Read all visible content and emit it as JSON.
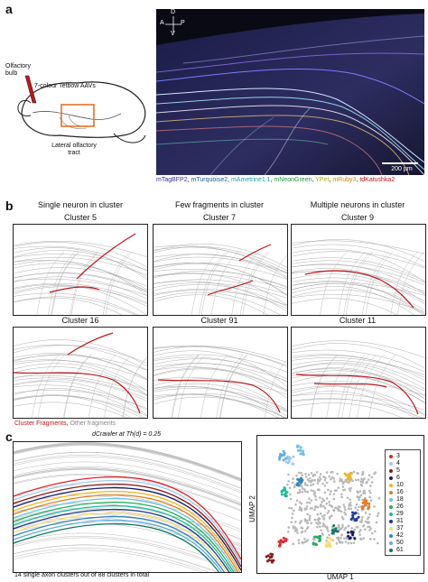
{
  "panel_a": {
    "letter": "a",
    "left_labels": {
      "olfactory_bulb": "Olfactory bulb",
      "aavs": "7-colour Tetbow AAVs",
      "tract": "Lateral olfactory tract"
    },
    "compass": {
      "d": "D",
      "a": "A",
      "p": "P",
      "v": "V"
    },
    "scale_bar": "200 µm",
    "fluor_labels": [
      {
        "text": "mTagBFP2",
        "color": "#3a2fa8"
      },
      {
        "text": "mTurquoise2",
        "color": "#1f5aa6"
      },
      {
        "text": "mAmetrine1.1",
        "color": "#1b9fb0"
      },
      {
        "text": "mNeonGreen",
        "color": "#1b9b3b"
      },
      {
        "text": "YPet",
        "color": "#b7a900"
      },
      {
        "text": "mRuby3",
        "color": "#d18a00"
      },
      {
        "text": "tdKatushka2",
        "color": "#c0151b"
      }
    ]
  },
  "panel_b": {
    "letter": "b",
    "headers": [
      "Single neuron in cluster",
      "Few fragments in cluster",
      "Multiple neurons in cluster"
    ],
    "clusters_row1": [
      "Cluster 5",
      "Cluster 7",
      "Cluster 9"
    ],
    "clusters_row2": [
      "Cluster 16",
      "Cluster 91",
      "Cluster 11"
    ],
    "legend_red": "Cluster Fragments",
    "legend_sep": ", ",
    "legend_grey": "Other fragments"
  },
  "panel_c": {
    "letter": "c",
    "title": "dCrawler at Th(d) = 0.25",
    "caption": "14 single axon clusters out of 88 clusters in total",
    "umap_x": "UMAP 1",
    "umap_y": "UMAP 2",
    "legend": [
      {
        "label": "3",
        "color": "#e8222a"
      },
      {
        "label": "4",
        "color": "#9ecbe8"
      },
      {
        "label": "5",
        "color": "#8b1a1a"
      },
      {
        "label": "6",
        "color": "#1a1a6e"
      },
      {
        "label": "10",
        "color": "#f2b61b"
      },
      {
        "label": "16",
        "color": "#e67e22"
      },
      {
        "label": "18",
        "color": "#6ec1e4"
      },
      {
        "label": "26",
        "color": "#27ae60"
      },
      {
        "label": "29",
        "color": "#1abc9c"
      },
      {
        "label": "31",
        "color": "#1f3a93"
      },
      {
        "label": "37",
        "color": "#f7dc6f"
      },
      {
        "label": "42",
        "color": "#2e86c1"
      },
      {
        "label": "50",
        "color": "#5dade2"
      },
      {
        "label": "61",
        "color": "#117a65"
      }
    ]
  }
}
